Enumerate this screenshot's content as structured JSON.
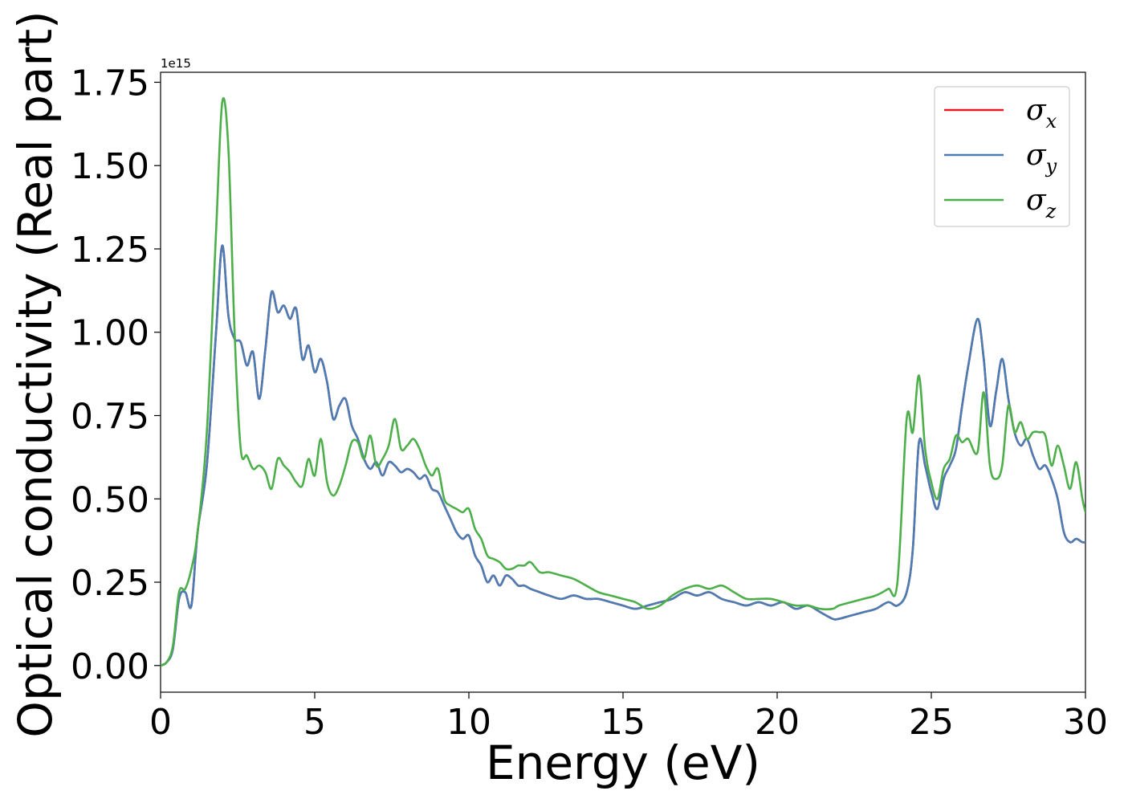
{
  "chart_data": {
    "type": "line",
    "title": "",
    "xlabel": "Energy (eV)",
    "ylabel": "Optical conductivity (Real part)",
    "y_offset_label": "1e15",
    "xlim": [
      0,
      30
    ],
    "ylim": [
      -0.08,
      1.78
    ],
    "xticks": [
      0,
      5,
      10,
      15,
      20,
      25,
      30
    ],
    "xtick_labels": [
      "0",
      "5",
      "10",
      "15",
      "20",
      "25",
      "30"
    ],
    "yticks": [
      0,
      0.25,
      0.5,
      0.75,
      1.0,
      1.25,
      1.5,
      1.75
    ],
    "ytick_labels": [
      "0.00",
      "0.25",
      "0.50",
      "0.75",
      "1.00",
      "1.25",
      "1.50",
      "1.75"
    ],
    "grid": false,
    "legend_position": "top-right",
    "series": [
      {
        "name": "σx",
        "legend_symbol": "σ",
        "legend_sub": "x",
        "color": "#e41a1c",
        "x": [
          0,
          0.2,
          0.4,
          0.6,
          0.8,
          1.0,
          1.2,
          1.5,
          1.8,
          2.0,
          2.2,
          2.4,
          2.6,
          2.8,
          3.0,
          3.2,
          3.4,
          3.6,
          3.8,
          4.0,
          4.2,
          4.4,
          4.6,
          4.8,
          5.0,
          5.2,
          5.4,
          5.6,
          5.8,
          6.0,
          6.2,
          6.4,
          6.6,
          6.8,
          7.0,
          7.2,
          7.4,
          7.6,
          7.8,
          8.0,
          8.2,
          8.4,
          8.6,
          8.8,
          9.0,
          9.2,
          9.4,
          9.6,
          9.8,
          10.0,
          10.2,
          10.4,
          10.6,
          10.8,
          11.0,
          11.2,
          11.4,
          11.6,
          11.8,
          12.0,
          12.3,
          12.6,
          13.0,
          13.4,
          13.8,
          14.2,
          14.6,
          15.0,
          15.4,
          15.8,
          16.2,
          16.6,
          17.0,
          17.4,
          17.8,
          18.2,
          18.6,
          19.0,
          19.4,
          19.8,
          20.2,
          20.6,
          21.0,
          21.4,
          21.8,
          22.0,
          22.4,
          22.8,
          23.2,
          23.6,
          23.9,
          24.2,
          24.4,
          24.6,
          24.8,
          25.0,
          25.2,
          25.4,
          25.6,
          25.8,
          26.0,
          26.2,
          26.5,
          26.7,
          26.9,
          27.1,
          27.3,
          27.5,
          27.7,
          27.9,
          28.1,
          28.3,
          28.5,
          28.7,
          28.9,
          29.1,
          29.3,
          29.5,
          29.7,
          29.9,
          30.0
        ],
        "values": [
          0.0,
          0.01,
          0.05,
          0.2,
          0.22,
          0.18,
          0.4,
          0.6,
          1.0,
          1.26,
          1.05,
          0.98,
          0.97,
          0.9,
          0.94,
          0.8,
          0.95,
          1.12,
          1.06,
          1.08,
          1.04,
          1.07,
          0.92,
          0.96,
          0.88,
          0.92,
          0.85,
          0.74,
          0.78,
          0.8,
          0.72,
          0.68,
          0.62,
          0.59,
          0.61,
          0.57,
          0.61,
          0.6,
          0.58,
          0.59,
          0.58,
          0.56,
          0.57,
          0.53,
          0.52,
          0.48,
          0.44,
          0.4,
          0.38,
          0.39,
          0.33,
          0.3,
          0.25,
          0.27,
          0.24,
          0.27,
          0.26,
          0.24,
          0.24,
          0.23,
          0.22,
          0.21,
          0.2,
          0.21,
          0.2,
          0.2,
          0.19,
          0.18,
          0.17,
          0.18,
          0.19,
          0.2,
          0.22,
          0.21,
          0.22,
          0.2,
          0.19,
          0.18,
          0.19,
          0.18,
          0.19,
          0.17,
          0.18,
          0.16,
          0.14,
          0.14,
          0.15,
          0.16,
          0.17,
          0.19,
          0.18,
          0.22,
          0.35,
          0.67,
          0.6,
          0.52,
          0.47,
          0.56,
          0.6,
          0.65,
          0.78,
          0.9,
          1.04,
          0.92,
          0.72,
          0.82,
          0.92,
          0.8,
          0.7,
          0.66,
          0.68,
          0.63,
          0.59,
          0.6,
          0.56,
          0.5,
          0.4,
          0.37,
          0.38,
          0.37,
          0.37
        ]
      },
      {
        "name": "σy",
        "legend_symbol": "σ",
        "legend_sub": "y",
        "color": "#4a7db5",
        "x": [
          0,
          0.2,
          0.4,
          0.6,
          0.8,
          1.0,
          1.2,
          1.5,
          1.8,
          2.0,
          2.2,
          2.4,
          2.6,
          2.8,
          3.0,
          3.2,
          3.4,
          3.6,
          3.8,
          4.0,
          4.2,
          4.4,
          4.6,
          4.8,
          5.0,
          5.2,
          5.4,
          5.6,
          5.8,
          6.0,
          6.2,
          6.4,
          6.6,
          6.8,
          7.0,
          7.2,
          7.4,
          7.6,
          7.8,
          8.0,
          8.2,
          8.4,
          8.6,
          8.8,
          9.0,
          9.2,
          9.4,
          9.6,
          9.8,
          10.0,
          10.2,
          10.4,
          10.6,
          10.8,
          11.0,
          11.2,
          11.4,
          11.6,
          11.8,
          12.0,
          12.3,
          12.6,
          13.0,
          13.4,
          13.8,
          14.2,
          14.6,
          15.0,
          15.4,
          15.8,
          16.2,
          16.6,
          17.0,
          17.4,
          17.8,
          18.2,
          18.6,
          19.0,
          19.4,
          19.8,
          20.2,
          20.6,
          21.0,
          21.4,
          21.8,
          22.0,
          22.4,
          22.8,
          23.2,
          23.6,
          23.9,
          24.2,
          24.4,
          24.6,
          24.8,
          25.0,
          25.2,
          25.4,
          25.6,
          25.8,
          26.0,
          26.2,
          26.5,
          26.7,
          26.9,
          27.1,
          27.3,
          27.5,
          27.7,
          27.9,
          28.1,
          28.3,
          28.5,
          28.7,
          28.9,
          29.1,
          29.3,
          29.5,
          29.7,
          29.9,
          30.0
        ],
        "values": [
          0.0,
          0.01,
          0.05,
          0.2,
          0.22,
          0.18,
          0.4,
          0.6,
          1.0,
          1.26,
          1.05,
          0.98,
          0.97,
          0.9,
          0.94,
          0.8,
          0.95,
          1.12,
          1.06,
          1.08,
          1.04,
          1.07,
          0.92,
          0.96,
          0.88,
          0.92,
          0.85,
          0.74,
          0.78,
          0.8,
          0.72,
          0.68,
          0.62,
          0.59,
          0.61,
          0.57,
          0.61,
          0.6,
          0.58,
          0.59,
          0.58,
          0.56,
          0.57,
          0.53,
          0.52,
          0.48,
          0.44,
          0.4,
          0.38,
          0.39,
          0.33,
          0.3,
          0.25,
          0.27,
          0.24,
          0.27,
          0.26,
          0.24,
          0.24,
          0.23,
          0.22,
          0.21,
          0.2,
          0.21,
          0.2,
          0.2,
          0.19,
          0.18,
          0.17,
          0.18,
          0.19,
          0.2,
          0.22,
          0.21,
          0.22,
          0.2,
          0.19,
          0.18,
          0.19,
          0.18,
          0.19,
          0.17,
          0.18,
          0.16,
          0.14,
          0.14,
          0.15,
          0.16,
          0.17,
          0.19,
          0.18,
          0.22,
          0.35,
          0.67,
          0.6,
          0.52,
          0.47,
          0.56,
          0.6,
          0.65,
          0.78,
          0.9,
          1.04,
          0.92,
          0.72,
          0.82,
          0.92,
          0.8,
          0.7,
          0.66,
          0.68,
          0.63,
          0.59,
          0.6,
          0.56,
          0.5,
          0.4,
          0.37,
          0.38,
          0.37,
          0.37
        ]
      },
      {
        "name": "σz",
        "legend_symbol": "σ",
        "legend_sub": "z",
        "color": "#4daf4a",
        "x": [
          0,
          0.2,
          0.4,
          0.6,
          0.8,
          1.0,
          1.2,
          1.5,
          1.8,
          2.0,
          2.2,
          2.4,
          2.6,
          2.8,
          3.0,
          3.2,
          3.4,
          3.6,
          3.8,
          4.0,
          4.2,
          4.4,
          4.6,
          4.8,
          5.0,
          5.2,
          5.4,
          5.6,
          5.8,
          6.0,
          6.2,
          6.4,
          6.6,
          6.8,
          7.0,
          7.2,
          7.4,
          7.6,
          7.8,
          8.0,
          8.2,
          8.4,
          8.6,
          8.8,
          9.0,
          9.2,
          9.4,
          9.6,
          9.8,
          10.0,
          10.2,
          10.4,
          10.6,
          10.8,
          11.0,
          11.2,
          11.4,
          11.6,
          11.8,
          12.0,
          12.3,
          12.6,
          13.0,
          13.4,
          13.8,
          14.2,
          14.6,
          15.0,
          15.4,
          15.8,
          16.2,
          16.6,
          17.0,
          17.4,
          17.8,
          18.2,
          18.6,
          19.0,
          19.4,
          19.8,
          20.2,
          20.6,
          21.0,
          21.4,
          21.8,
          22.0,
          22.4,
          22.8,
          23.2,
          23.6,
          23.9,
          24.2,
          24.4,
          24.6,
          24.8,
          25.0,
          25.2,
          25.4,
          25.6,
          25.8,
          26.0,
          26.2,
          26.5,
          26.7,
          26.9,
          27.1,
          27.3,
          27.5,
          27.7,
          27.9,
          28.1,
          28.3,
          28.5,
          28.7,
          28.9,
          29.1,
          29.3,
          29.5,
          29.7,
          29.9,
          30.0
        ],
        "values": [
          0.0,
          0.01,
          0.06,
          0.22,
          0.23,
          0.29,
          0.4,
          0.7,
          1.3,
          1.69,
          1.55,
          1.0,
          0.65,
          0.63,
          0.59,
          0.6,
          0.58,
          0.53,
          0.62,
          0.6,
          0.58,
          0.55,
          0.54,
          0.62,
          0.57,
          0.68,
          0.55,
          0.51,
          0.54,
          0.6,
          0.67,
          0.67,
          0.62,
          0.69,
          0.6,
          0.62,
          0.66,
          0.74,
          0.65,
          0.66,
          0.68,
          0.65,
          0.6,
          0.57,
          0.59,
          0.5,
          0.48,
          0.47,
          0.46,
          0.47,
          0.41,
          0.38,
          0.33,
          0.32,
          0.31,
          0.29,
          0.29,
          0.3,
          0.3,
          0.31,
          0.28,
          0.28,
          0.27,
          0.26,
          0.24,
          0.22,
          0.21,
          0.2,
          0.19,
          0.17,
          0.18,
          0.21,
          0.23,
          0.24,
          0.23,
          0.24,
          0.22,
          0.2,
          0.2,
          0.2,
          0.19,
          0.18,
          0.18,
          0.17,
          0.17,
          0.18,
          0.19,
          0.2,
          0.21,
          0.23,
          0.25,
          0.74,
          0.7,
          0.87,
          0.65,
          0.55,
          0.5,
          0.59,
          0.62,
          0.69,
          0.67,
          0.68,
          0.64,
          0.82,
          0.6,
          0.56,
          0.6,
          0.78,
          0.7,
          0.73,
          0.68,
          0.7,
          0.7,
          0.69,
          0.6,
          0.66,
          0.6,
          0.53,
          0.61,
          0.5,
          0.46
        ]
      }
    ]
  }
}
